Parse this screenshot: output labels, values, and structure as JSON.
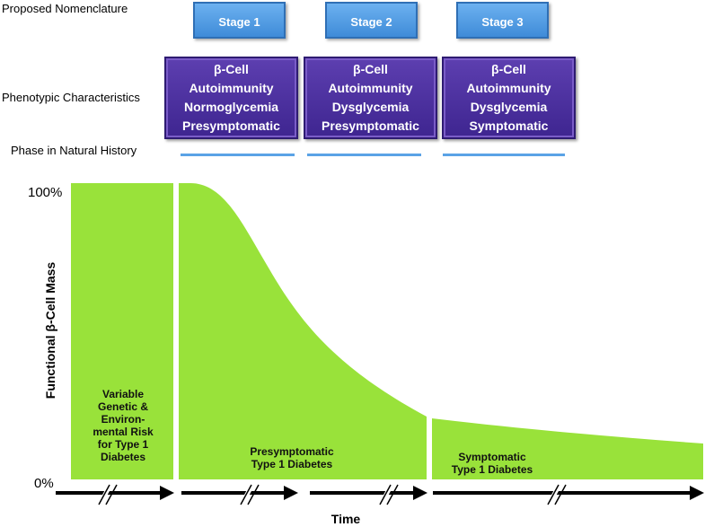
{
  "rows": {
    "nomenclature": "Proposed Nomenclature",
    "phenotypic": "Phenotypic Characteristics",
    "phase": "Phase in Natural History"
  },
  "stages": [
    {
      "label": "Stage 1"
    },
    {
      "label": "Stage  2"
    },
    {
      "label": "Stage  3"
    }
  ],
  "phenotypes": [
    {
      "l1": "β-Cell",
      "l2": "Autoimmunity",
      "l3": "Normoglycemia",
      "l4": "Presymptomatic"
    },
    {
      "l1": "β-Cell",
      "l2": "Autoimmunity",
      "l3": "Dysglycemia",
      "l4": "Presymptomatic"
    },
    {
      "l1": "β-Cell",
      "l2": "Autoimmunity",
      "l3": "Dysglycemia",
      "l4": "Symptomatic"
    }
  ],
  "chart": {
    "y_top": "100%",
    "y_bottom": "0%",
    "y_title": "Functional β-Cell Mass",
    "x_title": "Time",
    "region1": {
      "l1": "Variable",
      "l2": "Genetic &",
      "l3": "Environ-",
      "l4": "mental Risk",
      "l5": "for Type 1",
      "l6": "Diabetes"
    },
    "region2": {
      "l1": "Presymptomatic",
      "l2": "Type 1 Diabetes"
    },
    "region3": {
      "l1": "Symptomatic",
      "l2": "Type 1 Diabetes"
    },
    "fill_color": "#99e23a"
  }
}
